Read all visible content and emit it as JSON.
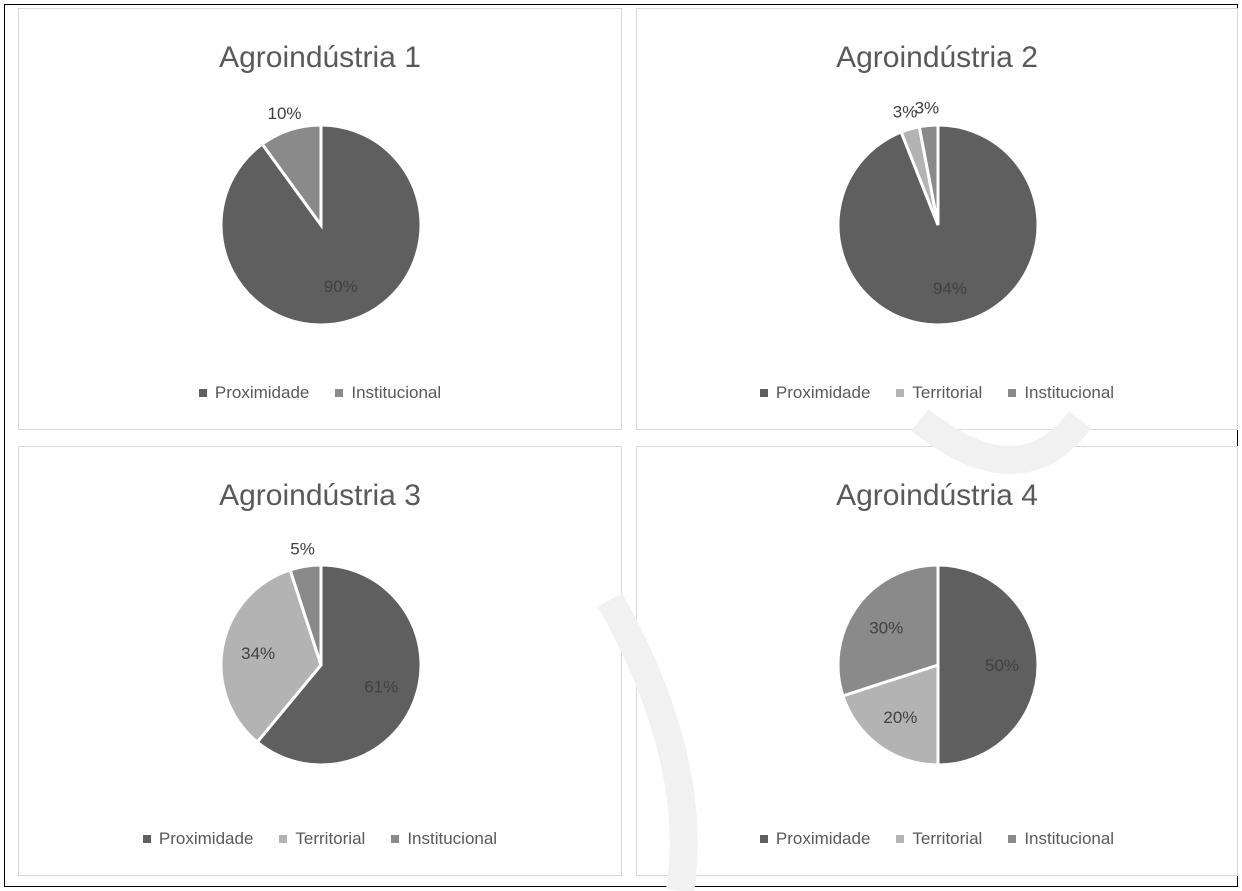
{
  "colors": {
    "Proximidade": "#5f5f5f",
    "Territorial": "#b3b3b3",
    "Institucional": "#8a8a8a"
  },
  "chart_data": [
    {
      "type": "pie",
      "title": "Agroindústria 1",
      "legend": [
        "Proximidade",
        "Institucional"
      ],
      "legend_position": "bottom",
      "slices": [
        {
          "name": "Proximidade",
          "value": 90,
          "label": "90%"
        },
        {
          "name": "Institucional",
          "value": 10,
          "label": "10%"
        }
      ]
    },
    {
      "type": "pie",
      "title": "Agroindústria 2",
      "legend": [
        "Proximidade",
        "Territorial",
        "Institucional"
      ],
      "legend_position": "bottom",
      "slices": [
        {
          "name": "Proximidade",
          "value": 94,
          "label": "94%"
        },
        {
          "name": "Territorial",
          "value": 3,
          "label": "3%"
        },
        {
          "name": "Institucional",
          "value": 3,
          "label": "3%"
        }
      ]
    },
    {
      "type": "pie",
      "title": "Agroindústria 3",
      "legend": [
        "Proximidade",
        "Territorial",
        "Institucional"
      ],
      "legend_position": "bottom",
      "slices": [
        {
          "name": "Proximidade",
          "value": 61,
          "label": "61%"
        },
        {
          "name": "Territorial",
          "value": 34,
          "label": "34%"
        },
        {
          "name": "Institucional",
          "value": 5,
          "label": "5%"
        }
      ]
    },
    {
      "type": "pie",
      "title": "Agroindústria 4",
      "legend": [
        "Proximidade",
        "Territorial",
        "Institucional"
      ],
      "legend_position": "bottom",
      "slices": [
        {
          "name": "Proximidade",
          "value": 50,
          "label": "50%"
        },
        {
          "name": "Territorial",
          "value": 20,
          "label": "20%"
        },
        {
          "name": "Institucional",
          "value": 30,
          "label": "30%"
        }
      ]
    }
  ]
}
